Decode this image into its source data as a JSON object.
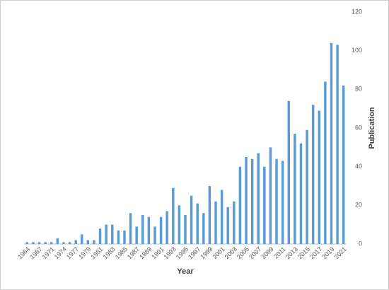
{
  "chart_data": {
    "type": "bar",
    "categories": [
      "1964",
      null,
      "1967",
      null,
      "1971",
      null,
      "1974",
      null,
      "1977",
      null,
      "1979",
      null,
      "1981",
      null,
      "1983",
      null,
      "1985",
      null,
      "1987",
      null,
      "1989",
      null,
      "1991",
      null,
      "1993",
      null,
      "1995",
      null,
      "1997",
      null,
      "1999",
      null,
      "2001",
      null,
      "2003",
      null,
      "2005",
      null,
      "2007",
      null,
      "2009",
      null,
      "2011",
      null,
      "2013",
      null,
      "2015",
      null,
      "2017",
      null,
      "2019",
      null,
      "2021"
    ],
    "values": [
      1,
      1,
      1,
      1,
      1,
      3,
      1,
      1,
      2,
      5,
      2,
      2,
      8,
      10,
      10,
      7,
      7,
      16,
      9,
      15,
      14,
      9,
      14,
      17,
      29,
      20,
      15,
      25,
      21,
      16,
      30,
      22,
      28,
      19,
      22,
      40,
      45,
      44,
      47,
      40,
      50,
      44,
      43,
      74,
      57,
      52,
      59,
      72,
      69,
      84,
      104,
      103,
      82
    ],
    "color": "#5b9bd5",
    "x_label": "Year",
    "y_label": "Publication",
    "ylim": [
      0,
      120
    ],
    "yticks": [
      0,
      20,
      40,
      60,
      80,
      100,
      120
    ],
    "grid": false
  }
}
